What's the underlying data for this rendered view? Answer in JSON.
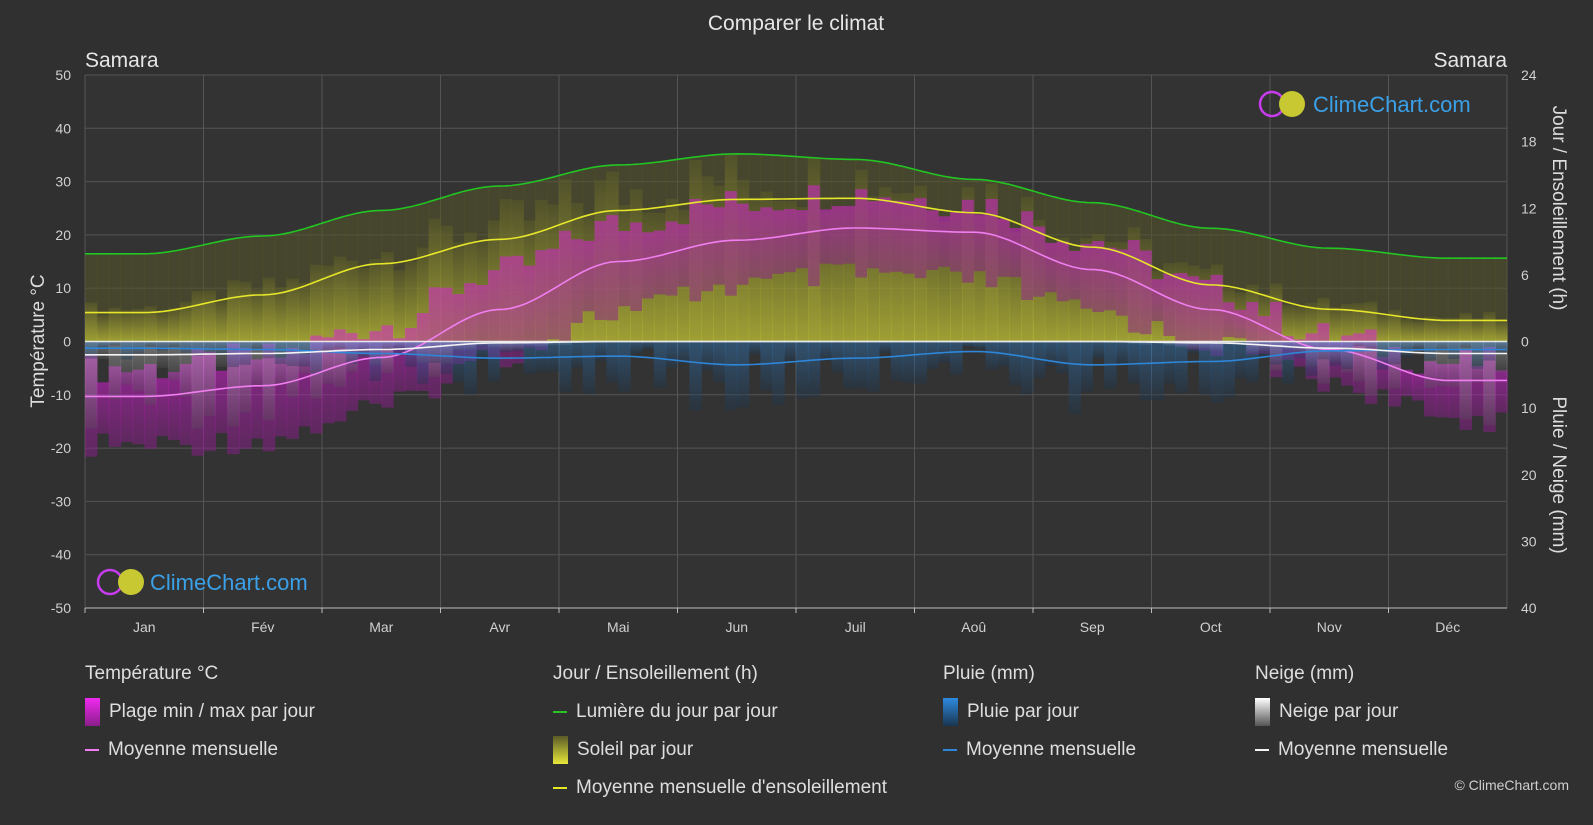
{
  "colors": {
    "background": "#303030",
    "grid": "#555555",
    "daylight": "#22c522",
    "sunshine_avg": "#e6e62a",
    "temp_avg": "#f07ef0",
    "temp_range": "#d02bd0",
    "sunshine_fill": "#b8b82e",
    "rain": "#2e86d8",
    "snow": "#f4f4f4"
  },
  "chart_data": {
    "type": "line",
    "title": "Comparer le climat",
    "location_left": "Samara",
    "location_right": "Samara",
    "x_categories": [
      "Jan",
      "Fév",
      "Mar",
      "Avr",
      "Mai",
      "Jun",
      "Juil",
      "Aoû",
      "Sep",
      "Oct",
      "Nov",
      "Déc"
    ],
    "y_left": {
      "label": "Température °C",
      "min": -50,
      "max": 50,
      "ticks": [
        50,
        40,
        30,
        20,
        10,
        0,
        -10,
        -20,
        -30,
        -40,
        -50
      ]
    },
    "y_right_top": {
      "label": "Jour / Ensoleillement (h)",
      "min": 0,
      "max": 24,
      "ticks": [
        24,
        18,
        12,
        6,
        0
      ]
    },
    "y_right_bottom": {
      "label": "Pluie / Neige (mm)",
      "min": 0,
      "max": 40,
      "ticks": [
        0,
        10,
        20,
        30,
        40
      ]
    },
    "grid": true,
    "series": [
      {
        "name": "Lumière du jour par jour",
        "axis": "right_top",
        "values": [
          7.9,
          9.5,
          11.8,
          14.0,
          15.9,
          16.9,
          16.4,
          14.6,
          12.5,
          10.2,
          8.4,
          7.5
        ]
      },
      {
        "name": "Moyenne mensuelle d'ensoleillement",
        "axis": "right_top",
        "values": [
          2.6,
          4.2,
          7.0,
          9.2,
          11.8,
          12.8,
          12.9,
          11.6,
          8.5,
          5.1,
          2.9,
          1.9
        ]
      },
      {
        "name": "Température moyenne mensuelle",
        "axis": "left",
        "values": [
          -10.3,
          -8.3,
          -3.0,
          6.0,
          15.0,
          19.0,
          21.3,
          20.5,
          13.5,
          6.0,
          -1.5,
          -7.3
        ]
      },
      {
        "name": "Température max par jour",
        "axis": "left",
        "values": [
          -5,
          -3,
          3,
          13,
          22,
          26,
          28,
          26,
          19,
          10,
          1,
          -4
        ]
      },
      {
        "name": "Température min par jour",
        "axis": "left",
        "values": [
          -17,
          -16,
          -10,
          0,
          8,
          13,
          15,
          14,
          8,
          2,
          -5,
          -12
        ]
      },
      {
        "name": "Pluie moyenne mensuelle",
        "axis": "right_bottom",
        "values": [
          1.0,
          1.2,
          1.8,
          2.5,
          2.2,
          3.5,
          2.5,
          1.5,
          3.5,
          3.0,
          1.4,
          1.2
        ]
      },
      {
        "name": "Neige moyenne mensuelle",
        "axis": "right_bottom",
        "values": [
          2.0,
          1.8,
          1.2,
          0.2,
          0.0,
          0.0,
          0.0,
          0.0,
          0.0,
          0.2,
          1.0,
          1.8
        ]
      }
    ]
  },
  "legend": {
    "temp": {
      "title": "Température °C",
      "range": "Plage min / max par jour",
      "avg": "Moyenne mensuelle"
    },
    "sun": {
      "title": "Jour / Ensoleillement (h)",
      "daylight": "Lumière du jour par jour",
      "sunshine": "Soleil par jour",
      "sun_avg": "Moyenne mensuelle d'ensoleillement"
    },
    "rain": {
      "title": "Pluie (mm)",
      "daily": "Pluie par jour",
      "avg": "Moyenne mensuelle"
    },
    "snow": {
      "title": "Neige (mm)",
      "daily": "Neige par jour",
      "avg": "Moyenne mensuelle"
    }
  },
  "watermark": "ClimeChart.com",
  "copyright": "© ClimeChart.com"
}
